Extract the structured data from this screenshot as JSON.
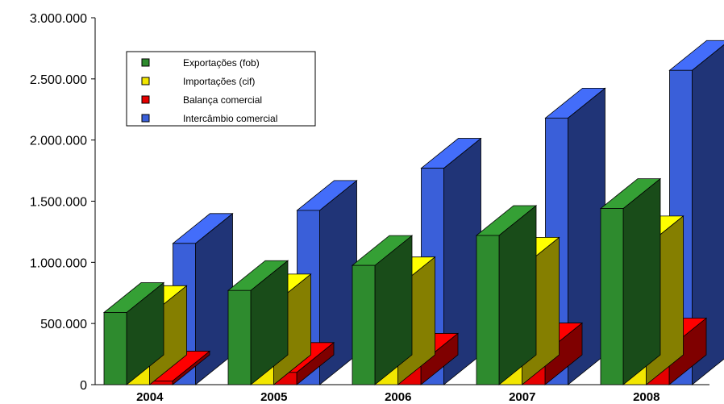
{
  "chart_data": {
    "type": "bar",
    "style": "3d-clustered",
    "categories": [
      "2004",
      "2005",
      "2006",
      "2007",
      "2008"
    ],
    "series": [
      {
        "name": "Exportações (fob)",
        "color": "#2e8b2e",
        "values": [
          590000,
          770000,
          975000,
          1220000,
          1440000
        ]
      },
      {
        "name": "Importações (cif)",
        "color": "#f2e600",
        "values": [
          565000,
          660000,
          800000,
          960000,
          1135000
        ]
      },
      {
        "name": "Balança comercial",
        "color": "#e60000",
        "values": [
          30000,
          100000,
          175000,
          260000,
          300000
        ]
      },
      {
        "name": "Intercâmbio comercial",
        "color": "#3a5fd9",
        "values": [
          1155000,
          1425000,
          1770000,
          2180000,
          2570000
        ]
      }
    ],
    "ylim": [
      0,
      3000000
    ],
    "yticks": [
      "0",
      "500.000",
      "1.000.000",
      "1.500.000",
      "2.000.000",
      "2.500.000",
      "3.000.000"
    ],
    "legend": "top-left",
    "grid": false
  }
}
